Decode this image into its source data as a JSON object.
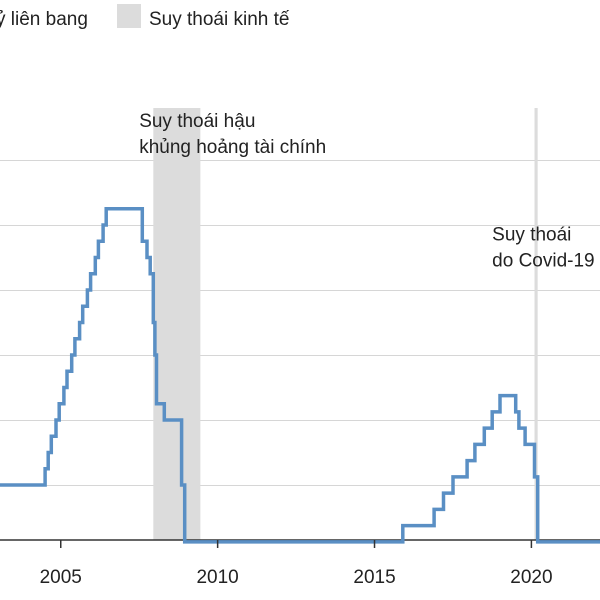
{
  "chart_data": {
    "type": "line",
    "legend": {
      "placement": "top-left",
      "entries": [
        {
          "label": "ỷ liên bang",
          "kind": "line"
        },
        {
          "label": "Suy thoái kinh tế",
          "kind": "box"
        }
      ]
    },
    "x_ticks": [
      {
        "label": "2005",
        "value": 2005
      },
      {
        "label": "2010",
        "value": 2010
      },
      {
        "label": "2015",
        "value": 2015
      },
      {
        "label": "2020",
        "value": 2020
      }
    ],
    "xlim": [
      2003.0,
      2022.25
    ],
    "ylim": [
      0,
      6
    ],
    "y_grid": [
      1,
      2,
      3,
      4,
      5,
      6
    ],
    "grid": "horizontal",
    "y_tick_labels_visible": false,
    "recessions": [
      {
        "start": 2007.95,
        "end": 2009.45,
        "kind": "band"
      },
      {
        "start": 2020.1,
        "end": 2020.2,
        "kind": "line"
      }
    ],
    "annotations": [
      {
        "lines": [
          "Suy thoái hậu",
          "khủng hoảng tài chính"
        ],
        "x": 2007.5,
        "y": 6.05
      },
      {
        "lines": [
          "Suy thoái",
          "do Covid-19"
        ],
        "x": 2018.75,
        "y": 4.3
      }
    ],
    "series_color": "#5a8fc4",
    "recession_color": "#dcdcdc",
    "series": [
      {
        "x": [
          2003.0,
          2004.0,
          2004.5,
          2004.6,
          2004.7,
          2004.85,
          2004.95,
          2005.1,
          2005.2,
          2005.35,
          2005.45,
          2005.6,
          2005.7,
          2005.85,
          2005.95,
          2006.1,
          2006.2,
          2006.35,
          2006.45,
          2006.6,
          2007.6,
          2007.75,
          2007.85,
          2007.95,
          2008.0,
          2008.05,
          2008.3,
          2008.6,
          2008.85,
          2008.95,
          2015.9,
          2016.9,
          2017.2,
          2017.5,
          2017.95,
          2018.2,
          2018.5,
          2018.75,
          2019.0,
          2019.5,
          2019.6,
          2019.8,
          2020.1,
          2020.2,
          2022.25
        ],
        "y": [
          1.0,
          1.0,
          1.25,
          1.5,
          1.75,
          2.0,
          2.25,
          2.5,
          2.75,
          3.0,
          3.25,
          3.5,
          3.75,
          4.0,
          4.25,
          4.5,
          4.75,
          5.0,
          5.25,
          5.25,
          4.75,
          4.5,
          4.25,
          3.5,
          3.0,
          2.25,
          2.0,
          2.0,
          1.0,
          0.125,
          0.375,
          0.625,
          0.875,
          1.125,
          1.375,
          1.625,
          1.875,
          2.125,
          2.375,
          2.125,
          1.875,
          1.625,
          1.125,
          0.125,
          0.125
        ]
      }
    ]
  }
}
